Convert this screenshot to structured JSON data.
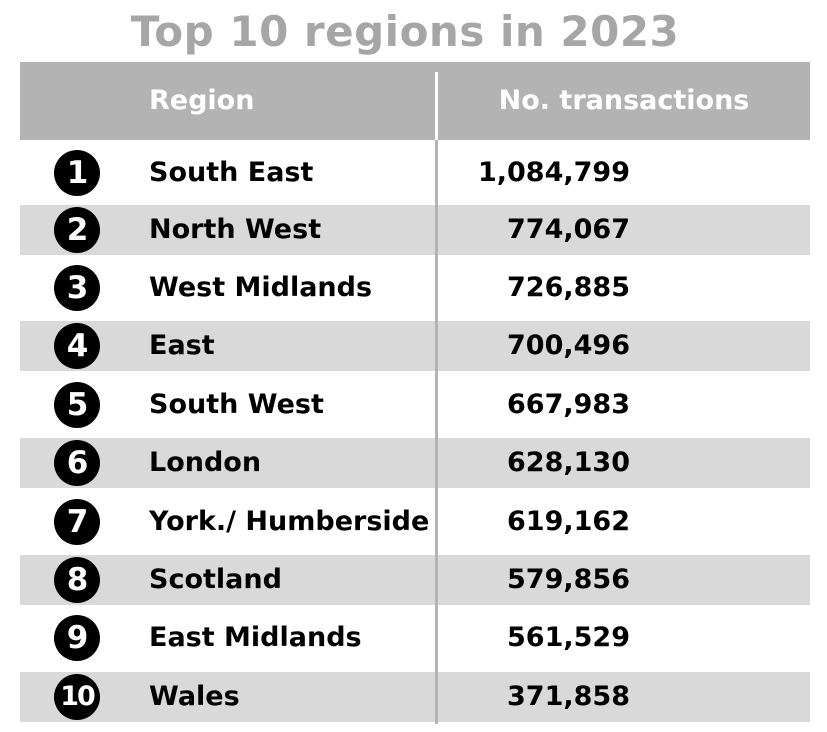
{
  "chart_data": {
    "type": "table",
    "title": "Top 10 regions in 2023",
    "columns": [
      "Region",
      "No. transactions"
    ],
    "rows": [
      {
        "rank": "1",
        "region": "South East",
        "transactions": "1,084,799"
      },
      {
        "rank": "2",
        "region": "North West",
        "transactions": "774,067"
      },
      {
        "rank": "3",
        "region": "West Midlands",
        "transactions": "726,885"
      },
      {
        "rank": "4",
        "region": "East",
        "transactions": "700,496"
      },
      {
        "rank": "5",
        "region": "South West",
        "transactions": "667,983"
      },
      {
        "rank": "6",
        "region": "London",
        "transactions": "628,130"
      },
      {
        "rank": "7",
        "region": "York./ Humberside",
        "transactions": "619,162"
      },
      {
        "rank": "8",
        "region": "Scotland",
        "transactions": "579,856"
      },
      {
        "rank": "9",
        "region": "East Midlands",
        "transactions": "561,529"
      },
      {
        "rank": "10",
        "region": "Wales",
        "transactions": "371,858"
      }
    ]
  },
  "colors": {
    "title": "#a6a6a6",
    "header_background": "#b3b3b3",
    "header_text": "#ffffff",
    "shaded_row": "#d9d9d9",
    "rank_badge": "#000000"
  }
}
